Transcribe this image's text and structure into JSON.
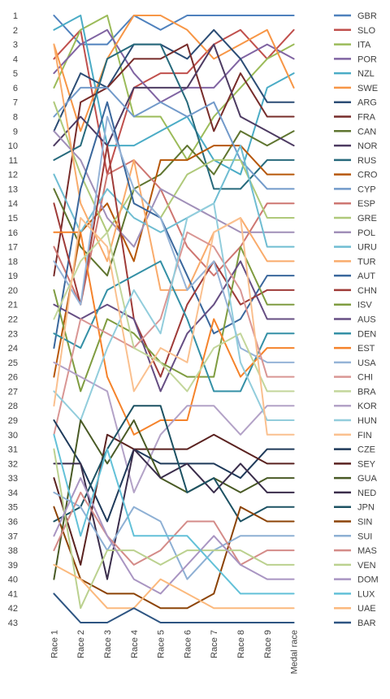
{
  "chart_data": {
    "type": "line",
    "title": "",
    "xlabel": "",
    "ylabel": "",
    "x": [
      "Race 1",
      "Race 2",
      "Race 3",
      "Race 4",
      "Race 5",
      "Race 6",
      "Race 7",
      "Race 8",
      "Race 9",
      "Medal race"
    ],
    "ylim": [
      1,
      43
    ],
    "y_reversed": true,
    "y_ticks": [
      1,
      2,
      3,
      4,
      5,
      6,
      7,
      8,
      9,
      10,
      11,
      12,
      13,
      14,
      15,
      16,
      17,
      18,
      19,
      20,
      21,
      22,
      23,
      24,
      25,
      26,
      27,
      28,
      29,
      30,
      31,
      32,
      33,
      34,
      35,
      36,
      37,
      38,
      39,
      40,
      41,
      42,
      43
    ],
    "grid": false,
    "legend_position": "right",
    "series": [
      {
        "name": "GBR",
        "color": "#4f81bd",
        "values": [
          1,
          3,
          3,
          1,
          2,
          1,
          1,
          1,
          1,
          1
        ]
      },
      {
        "name": "SLO",
        "color": "#c0504d",
        "values": [
          4,
          2,
          12,
          6,
          5,
          5,
          3,
          2,
          4,
          2
        ]
      },
      {
        "name": "ITA",
        "color": "#9bbb59",
        "values": [
          6,
          2,
          1,
          8,
          8,
          11,
          8,
          6,
          4,
          3
        ]
      },
      {
        "name": "POR",
        "color": "#8064a2",
        "values": [
          5,
          3,
          2,
          5,
          7,
          6,
          6,
          4,
          3,
          4
        ]
      },
      {
        "name": "NZL",
        "color": "#4bacc6",
        "values": [
          2,
          1,
          10,
          10,
          9,
          8,
          11,
          12,
          6,
          5
        ]
      },
      {
        "name": "SWE",
        "color": "#f79646",
        "values": [
          3,
          9,
          4,
          1,
          1,
          2,
          4,
          3,
          2,
          6
        ]
      },
      {
        "name": "ARG",
        "color": "#2c4d75",
        "values": [
          9,
          5,
          6,
          3,
          3,
          4,
          2,
          4,
          7,
          7
        ]
      },
      {
        "name": "FRA",
        "color": "#772c2a",
        "values": [
          19,
          7,
          6,
          4,
          4,
          3,
          9,
          5,
          8,
          8
        ]
      },
      {
        "name": "CAN",
        "color": "#5f7530",
        "values": [
          13,
          17,
          19,
          13,
          12,
          10,
          12,
          9,
          10,
          9
        ]
      },
      {
        "name": "NOR",
        "color": "#4d3b62",
        "values": [
          10,
          8,
          10,
          6,
          6,
          6,
          3,
          8,
          9,
          10
        ]
      },
      {
        "name": "RUS",
        "color": "#276a7c",
        "values": [
          11,
          10,
          4,
          3,
          3,
          7,
          13,
          13,
          11,
          11
        ]
      },
      {
        "name": "CRO",
        "color": "#b65708",
        "values": [
          26,
          16,
          14,
          18,
          11,
          11,
          10,
          10,
          12,
          12
        ]
      },
      {
        "name": "CYP",
        "color": "#729aca",
        "values": [
          8,
          6,
          6,
          8,
          7,
          8,
          7,
          11,
          13,
          13
        ]
      },
      {
        "name": "ESP",
        "color": "#ce7671",
        "values": [
          17,
          21,
          12,
          11,
          13,
          17,
          19,
          17,
          14,
          14
        ]
      },
      {
        "name": "GRE",
        "color": "#afc97a",
        "values": [
          7,
          12,
          16,
          13,
          15,
          12,
          11,
          11,
          15,
          15
        ]
      },
      {
        "name": "POL",
        "color": "#a08fb8",
        "values": [
          9,
          11,
          15,
          17,
          13,
          14,
          15,
          16,
          16,
          16
        ]
      },
      {
        "name": "URU",
        "color": "#6fbdd2",
        "values": [
          12,
          16,
          13,
          15,
          16,
          15,
          14,
          10,
          17,
          17
        ]
      },
      {
        "name": "TUR",
        "color": "#f9ab6b",
        "values": [
          3,
          14,
          18,
          11,
          20,
          20,
          16,
          15,
          18,
          18
        ]
      },
      {
        "name": "AUT",
        "color": "#3a679c",
        "values": [
          24,
          13,
          7,
          14,
          15,
          19,
          23,
          22,
          19,
          19
        ]
      },
      {
        "name": "CHN",
        "color": "#9f3b38",
        "values": [
          14,
          21,
          10,
          22,
          26,
          21,
          18,
          21,
          20,
          20
        ]
      },
      {
        "name": "ISV",
        "color": "#7f9c40",
        "values": [
          20,
          27,
          22,
          23,
          25,
          26,
          26,
          17,
          21,
          21
        ]
      },
      {
        "name": "AUS",
        "color": "#664e83",
        "values": [
          21,
          22,
          21,
          22,
          27,
          23,
          21,
          18,
          22,
          22
        ]
      },
      {
        "name": "DEN",
        "color": "#3490a6",
        "values": [
          23,
          24,
          20,
          19,
          18,
          22,
          27,
          27,
          23,
          23
        ]
      },
      {
        "name": "EST",
        "color": "#f5832b",
        "values": [
          16,
          16,
          26,
          30,
          29,
          29,
          22,
          26,
          24,
          24
        ]
      },
      {
        "name": "USA",
        "color": "#95b3d7",
        "values": [
          18,
          21,
          8,
          13,
          15,
          20,
          18,
          24,
          25,
          25
        ]
      },
      {
        "name": "CHI",
        "color": "#d99694",
        "values": [
          30,
          22,
          23,
          24,
          22,
          16,
          17,
          20,
          26,
          26
        ]
      },
      {
        "name": "BRA",
        "color": "#c3d69b",
        "values": [
          22,
          18,
          16,
          24,
          25,
          27,
          24,
          23,
          27,
          27
        ]
      },
      {
        "name": "KOR",
        "color": "#b3a2c7",
        "values": [
          25,
          26,
          27,
          34,
          30,
          28,
          28,
          30,
          28,
          28
        ]
      },
      {
        "name": "HUN",
        "color": "#92cddc",
        "values": [
          27,
          29,
          24,
          20,
          23,
          15,
          14,
          25,
          29,
          29
        ]
      },
      {
        "name": "FIN",
        "color": "#fac08f",
        "values": [
          28,
          15,
          17,
          27,
          24,
          25,
          16,
          15,
          30,
          30
        ]
      },
      {
        "name": "CZE",
        "color": "#1f3a5a",
        "values": [
          29,
          32,
          36,
          31,
          32,
          32,
          32,
          33,
          31,
          31
        ]
      },
      {
        "name": "SEY",
        "color": "#5a2220",
        "values": [
          33,
          39,
          30,
          31,
          31,
          31,
          30,
          31,
          32,
          32
        ]
      },
      {
        "name": "GUA",
        "color": "#495a25",
        "values": [
          40,
          29,
          32,
          29,
          33,
          34,
          33,
          34,
          33,
          33
        ]
      },
      {
        "name": "NED",
        "color": "#3a2d4b",
        "values": [
          32,
          32,
          40,
          31,
          33,
          32,
          34,
          32,
          34,
          34
        ]
      },
      {
        "name": "JPN",
        "color": "#1d5263",
        "values": [
          36,
          35,
          31,
          28,
          28,
          34,
          33,
          36,
          35,
          35
        ]
      },
      {
        "name": "SIN",
        "color": "#8c4306",
        "values": [
          35,
          40,
          41,
          41,
          42,
          42,
          41,
          35,
          36,
          36
        ]
      },
      {
        "name": "SUI",
        "color": "#8eb0d4",
        "values": [
          34,
          35,
          38,
          35,
          36,
          40,
          38,
          37,
          37,
          37
        ]
      },
      {
        "name": "MAS",
        "color": "#d48b88",
        "values": [
          38,
          34,
          37,
          39,
          38,
          36,
          36,
          39,
          38,
          38
        ]
      },
      {
        "name": "VEN",
        "color": "#bbd18f",
        "values": [
          31,
          42,
          38,
          38,
          39,
          38,
          38,
          38,
          39,
          39
        ]
      },
      {
        "name": "DOM",
        "color": "#a995c2",
        "values": [
          37,
          33,
          37,
          40,
          41,
          39,
          37,
          39,
          40,
          40
        ]
      },
      {
        "name": "LUX",
        "color": "#63c1d8",
        "values": [
          30,
          37,
          31,
          37,
          37,
          37,
          39,
          41,
          41,
          41
        ]
      },
      {
        "name": "UAE",
        "color": "#fbb97d",
        "values": [
          39,
          40,
          42,
          42,
          40,
          41,
          42,
          42,
          42,
          42
        ]
      },
      {
        "name": "BAR",
        "color": "#2e5582",
        "values": [
          41,
          43,
          43,
          42,
          43,
          43,
          43,
          43,
          43,
          43
        ]
      }
    ]
  }
}
